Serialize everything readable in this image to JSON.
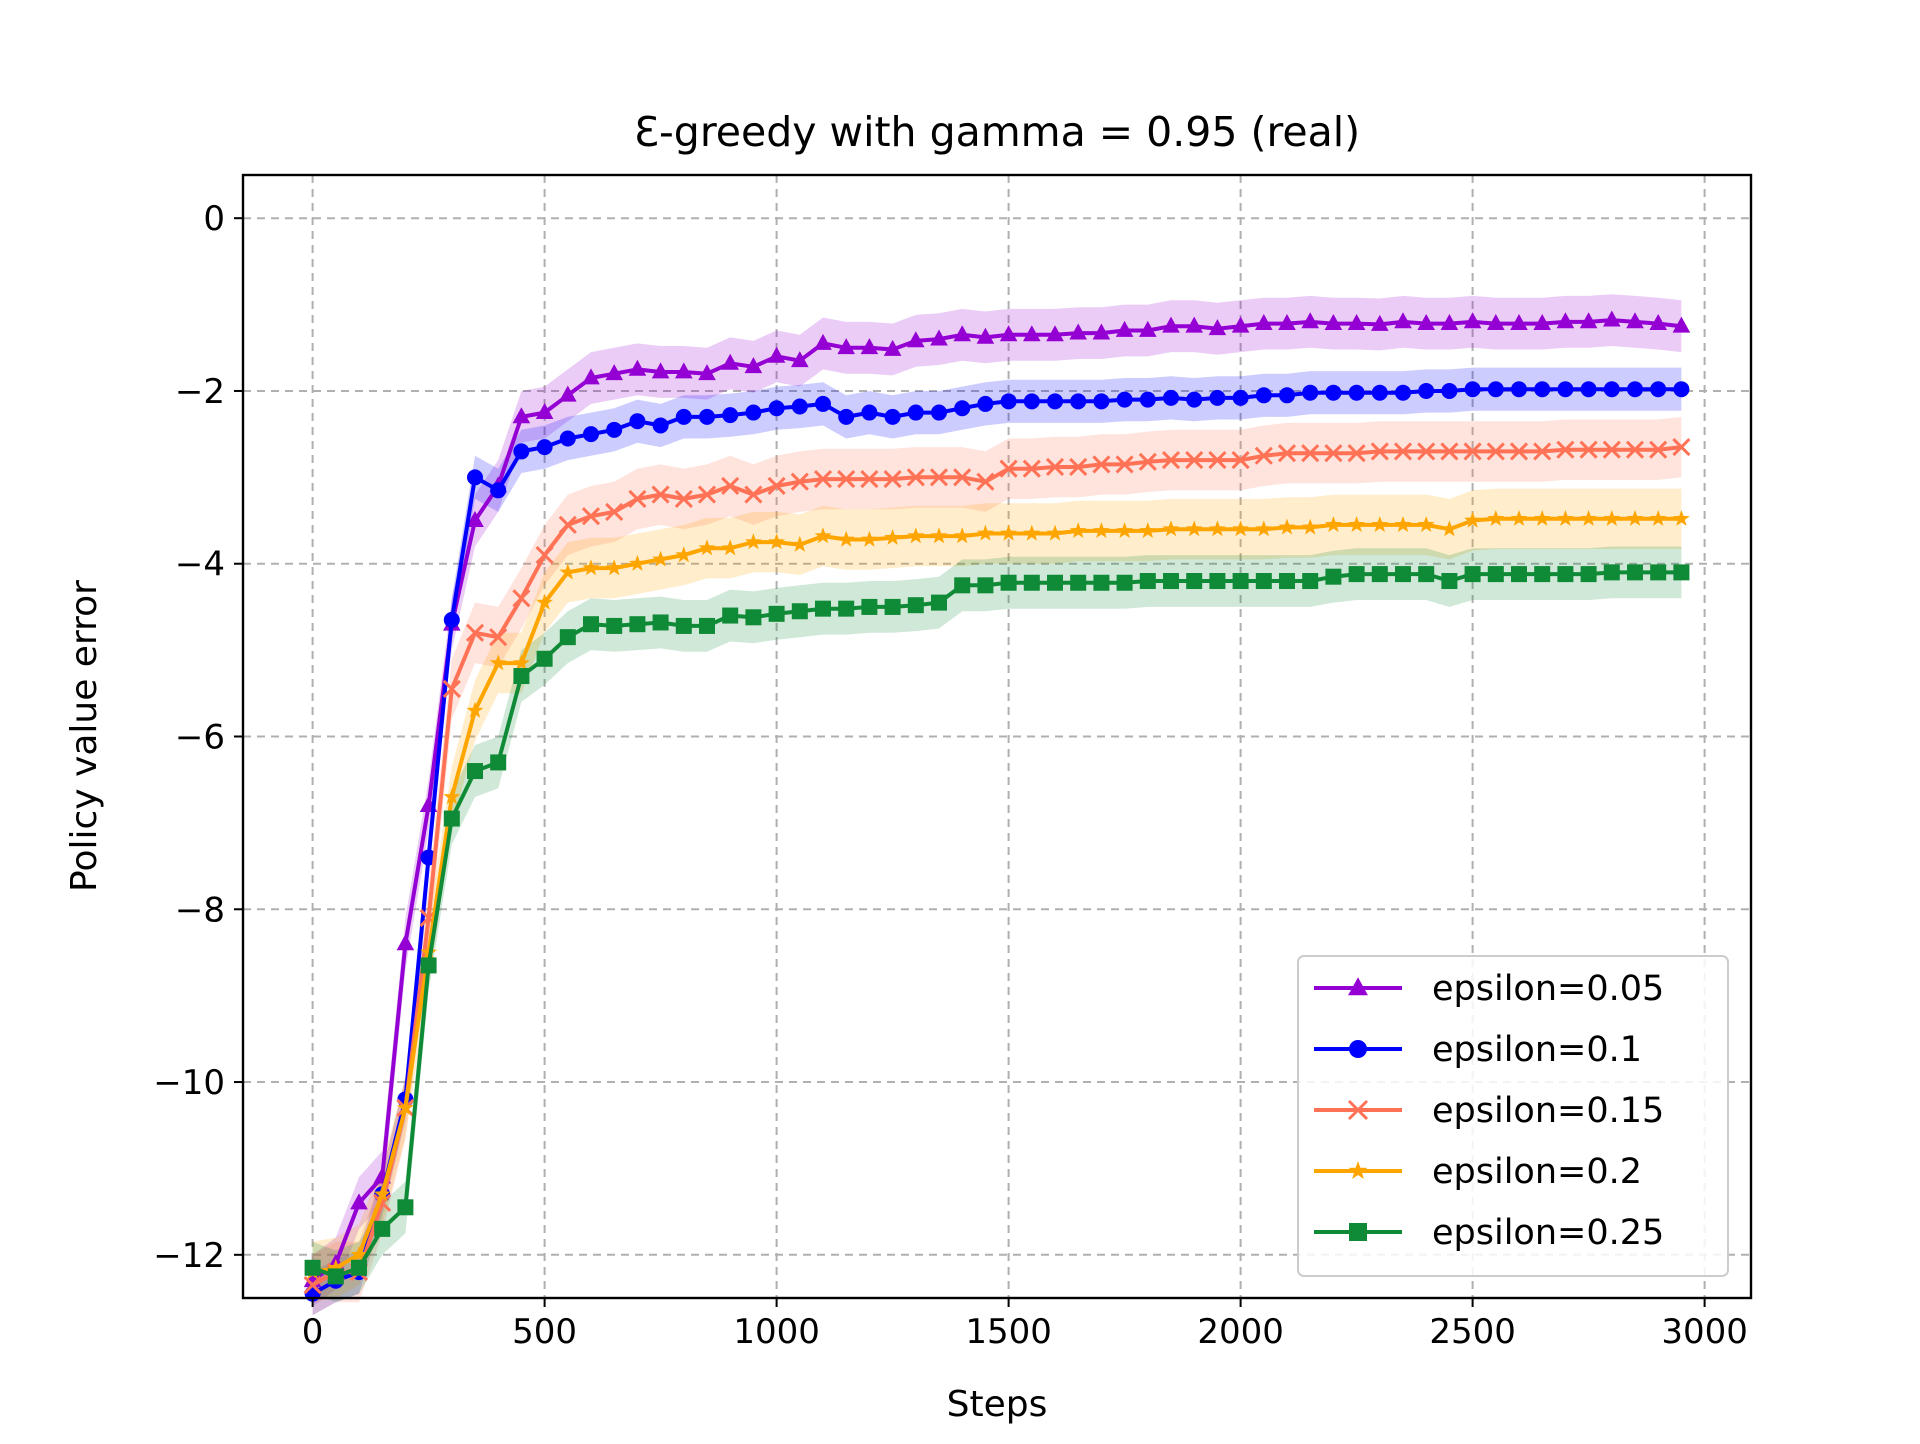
{
  "chart_data": {
    "type": "line",
    "title": "Ɛ-greedy with gamma = 0.95 (real)",
    "xlabel": "Steps",
    "ylabel": "Policy value error",
    "xlim": [
      -150,
      3100
    ],
    "ylim": [
      -12.5,
      0.5
    ],
    "xticks": [
      0,
      500,
      1000,
      1500,
      2000,
      2500,
      3000
    ],
    "yticks": [
      0,
      -2,
      -4,
      -6,
      -8,
      -10,
      -12
    ],
    "xtick_labels": [
      "0",
      "500",
      "1000",
      "1500",
      "2000",
      "2500",
      "3000"
    ],
    "ytick_labels": [
      "0",
      "−2",
      "−4",
      "−6",
      "−8",
      "−10",
      "−12"
    ],
    "grid": true,
    "legend_position": "lower-right",
    "x": [
      0,
      50,
      100,
      150,
      200,
      250,
      300,
      350,
      400,
      450,
      500,
      550,
      600,
      650,
      700,
      750,
      800,
      850,
      900,
      950,
      1000,
      1050,
      1100,
      1150,
      1200,
      1250,
      1300,
      1350,
      1400,
      1450,
      1500,
      1550,
      1600,
      1650,
      1700,
      1750,
      1800,
      1850,
      1900,
      1950,
      2000,
      2050,
      2100,
      2150,
      2200,
      2250,
      2300,
      2350,
      2400,
      2450,
      2500,
      2550,
      2600,
      2650,
      2700,
      2750,
      2800,
      2850,
      2900,
      2950
    ],
    "series": [
      {
        "name": "epsilon=0.05",
        "color": "#9400d3",
        "marker": "triangle",
        "band": 0.3,
        "values": [
          -12.3,
          -12.1,
          -11.4,
          -11.1,
          -8.4,
          -6.8,
          -4.7,
          -3.5,
          -3.1,
          -2.3,
          -2.25,
          -2.05,
          -1.85,
          -1.8,
          -1.75,
          -1.78,
          -1.78,
          -1.8,
          -1.68,
          -1.72,
          -1.6,
          -1.65,
          -1.45,
          -1.5,
          -1.5,
          -1.52,
          -1.42,
          -1.4,
          -1.35,
          -1.38,
          -1.35,
          -1.35,
          -1.35,
          -1.33,
          -1.33,
          -1.3,
          -1.3,
          -1.25,
          -1.25,
          -1.28,
          -1.25,
          -1.22,
          -1.22,
          -1.2,
          -1.22,
          -1.22,
          -1.23,
          -1.2,
          -1.22,
          -1.22,
          -1.2,
          -1.22,
          -1.22,
          -1.22,
          -1.2,
          -1.2,
          -1.18,
          -1.2,
          -1.22,
          -1.25
        ]
      },
      {
        "name": "epsilon=0.1",
        "color": "#0000ff",
        "marker": "circle",
        "band": 0.25,
        "values": [
          -12.45,
          -12.3,
          -12.2,
          -11.3,
          -10.2,
          -7.4,
          -4.65,
          -3.0,
          -3.15,
          -2.7,
          -2.65,
          -2.55,
          -2.5,
          -2.45,
          -2.35,
          -2.4,
          -2.3,
          -2.3,
          -2.28,
          -2.25,
          -2.2,
          -2.18,
          -2.15,
          -2.3,
          -2.25,
          -2.3,
          -2.25,
          -2.25,
          -2.2,
          -2.15,
          -2.12,
          -2.12,
          -2.12,
          -2.12,
          -2.12,
          -2.1,
          -2.1,
          -2.08,
          -2.1,
          -2.08,
          -2.08,
          -2.05,
          -2.05,
          -2.02,
          -2.02,
          -2.02,
          -2.02,
          -2.02,
          -2.0,
          -2.0,
          -1.98,
          -1.98,
          -1.98,
          -1.98,
          -1.98,
          -1.98,
          -1.98,
          -1.98,
          -1.98,
          -1.98
        ]
      },
      {
        "name": "epsilon=0.15",
        "color": "#ff7256",
        "marker": "x",
        "band": 0.35,
        "values": [
          -12.35,
          -12.2,
          -12.2,
          -11.4,
          -10.3,
          -8.1,
          -5.45,
          -4.8,
          -4.85,
          -4.4,
          -3.9,
          -3.55,
          -3.45,
          -3.4,
          -3.25,
          -3.2,
          -3.25,
          -3.2,
          -3.1,
          -3.2,
          -3.1,
          -3.05,
          -3.02,
          -3.02,
          -3.02,
          -3.02,
          -3.0,
          -3.0,
          -3.0,
          -3.05,
          -2.9,
          -2.9,
          -2.88,
          -2.88,
          -2.85,
          -2.85,
          -2.82,
          -2.8,
          -2.8,
          -2.8,
          -2.8,
          -2.75,
          -2.72,
          -2.72,
          -2.72,
          -2.72,
          -2.7,
          -2.7,
          -2.7,
          -2.7,
          -2.7,
          -2.7,
          -2.7,
          -2.7,
          -2.68,
          -2.68,
          -2.68,
          -2.68,
          -2.68,
          -2.65
        ]
      },
      {
        "name": "epsilon=0.2",
        "color": "#ffa500",
        "marker": "star",
        "band": 0.35,
        "values": [
          -12.2,
          -12.15,
          -12.0,
          -11.3,
          -10.3,
          -8.5,
          -6.7,
          -5.7,
          -5.15,
          -5.15,
          -4.45,
          -4.1,
          -4.05,
          -4.05,
          -4.0,
          -3.95,
          -3.9,
          -3.82,
          -3.82,
          -3.75,
          -3.75,
          -3.78,
          -3.68,
          -3.72,
          -3.72,
          -3.7,
          -3.68,
          -3.68,
          -3.68,
          -3.65,
          -3.65,
          -3.65,
          -3.65,
          -3.62,
          -3.62,
          -3.62,
          -3.62,
          -3.6,
          -3.6,
          -3.6,
          -3.6,
          -3.6,
          -3.58,
          -3.58,
          -3.55,
          -3.55,
          -3.55,
          -3.55,
          -3.55,
          -3.6,
          -3.5,
          -3.48,
          -3.48,
          -3.48,
          -3.48,
          -3.48,
          -3.48,
          -3.48,
          -3.48,
          -3.48
        ]
      },
      {
        "name": "epsilon=0.25",
        "color": "#0f8a36",
        "marker": "square",
        "band": 0.3,
        "values": [
          -12.15,
          -12.25,
          -12.15,
          -11.7,
          -11.45,
          -8.65,
          -6.95,
          -6.4,
          -6.3,
          -5.3,
          -5.1,
          -4.85,
          -4.7,
          -4.72,
          -4.7,
          -4.68,
          -4.72,
          -4.72,
          -4.6,
          -4.62,
          -4.58,
          -4.55,
          -4.52,
          -4.52,
          -4.5,
          -4.5,
          -4.48,
          -4.45,
          -4.25,
          -4.25,
          -4.22,
          -4.22,
          -4.22,
          -4.22,
          -4.22,
          -4.22,
          -4.2,
          -4.2,
          -4.2,
          -4.2,
          -4.2,
          -4.2,
          -4.2,
          -4.2,
          -4.15,
          -4.12,
          -4.12,
          -4.12,
          -4.12,
          -4.2,
          -4.12,
          -4.12,
          -4.12,
          -4.12,
          -4.12,
          -4.12,
          -4.1,
          -4.1,
          -4.1,
          -4.1
        ]
      }
    ]
  }
}
